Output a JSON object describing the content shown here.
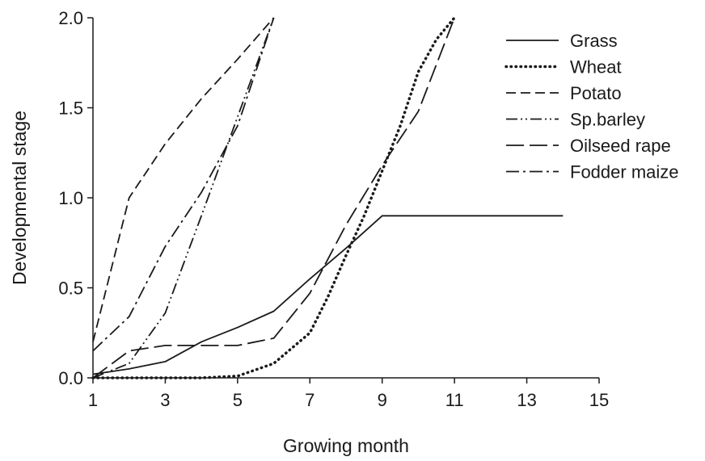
{
  "chart_data": {
    "type": "line",
    "xlabel": "Growing month",
    "ylabel": "Developmental stage",
    "xlim": [
      1,
      15
    ],
    "ylim": [
      0.0,
      2.0
    ],
    "x_ticks": [
      "1",
      "3",
      "5",
      "7",
      "9",
      "11",
      "13",
      "15"
    ],
    "y_ticks": [
      "0.0",
      "0.5",
      "1.0",
      "1.5",
      "2.0"
    ],
    "grid": false,
    "legend_position": "top-right",
    "line_color": "#1a1a1a",
    "series": [
      {
        "name": "Grass",
        "style": "solid",
        "points": [
          [
            1,
            0.02
          ],
          [
            2,
            0.05
          ],
          [
            3,
            0.09
          ],
          [
            4,
            0.2
          ],
          [
            5,
            0.28
          ],
          [
            6,
            0.37
          ],
          [
            7,
            0.55
          ],
          [
            8,
            0.72
          ],
          [
            9,
            0.9
          ],
          [
            10,
            0.9
          ],
          [
            11,
            0.9
          ],
          [
            12,
            0.9
          ],
          [
            13,
            0.9
          ],
          [
            14,
            0.9
          ]
        ]
      },
      {
        "name": "Wheat",
        "style": "dotted",
        "points": [
          [
            1,
            0.0
          ],
          [
            2,
            0.0
          ],
          [
            3,
            0.0
          ],
          [
            4,
            0.0
          ],
          [
            5,
            0.01
          ],
          [
            6,
            0.08
          ],
          [
            7,
            0.25
          ],
          [
            7.5,
            0.45
          ],
          [
            8,
            0.68
          ],
          [
            8.5,
            0.9
          ],
          [
            9,
            1.15
          ],
          [
            9.5,
            1.4
          ],
          [
            10,
            1.7
          ],
          [
            10.5,
            1.88
          ],
          [
            11,
            2.0
          ]
        ]
      },
      {
        "name": "Potato",
        "style": "dashed",
        "points": [
          [
            1,
            0.2
          ],
          [
            2,
            1.0
          ],
          [
            3,
            1.3
          ],
          [
            4,
            1.55
          ],
          [
            5,
            1.77
          ],
          [
            6,
            2.0
          ]
        ]
      },
      {
        "name": "Sp.barley",
        "style": "dash-dot-dot",
        "points": [
          [
            1,
            0.0
          ],
          [
            2,
            0.08
          ],
          [
            3,
            0.36
          ],
          [
            4,
            0.9
          ],
          [
            5,
            1.45
          ],
          [
            6,
            2.0
          ]
        ]
      },
      {
        "name": "Oilseed rape",
        "style": "long-dash",
        "points": [
          [
            1,
            0.0
          ],
          [
            2,
            0.15
          ],
          [
            3,
            0.18
          ],
          [
            4,
            0.18
          ],
          [
            5,
            0.18
          ],
          [
            6,
            0.22
          ],
          [
            7,
            0.47
          ],
          [
            8,
            0.85
          ],
          [
            9,
            1.18
          ],
          [
            10,
            1.48
          ],
          [
            11,
            2.0
          ]
        ]
      },
      {
        "name": "Fodder maize",
        "style": "dash-dot",
        "points": [
          [
            1,
            0.15
          ],
          [
            2,
            0.34
          ],
          [
            3,
            0.73
          ],
          [
            4,
            1.03
          ],
          [
            5,
            1.4
          ],
          [
            6,
            2.0
          ]
        ]
      }
    ]
  }
}
